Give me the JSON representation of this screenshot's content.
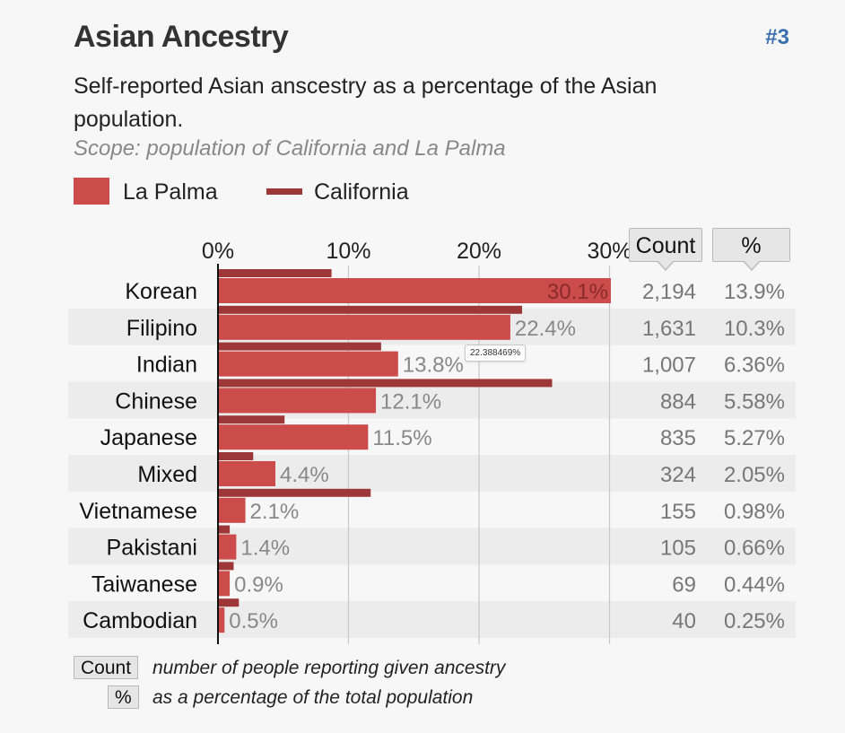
{
  "header": {
    "title": "Asian Ancestry",
    "rank": "#3",
    "subtitle": "Self-reported Asian anscestry as a percentage of the Asian population.",
    "scope": "Scope: population of California and La Palma"
  },
  "legend": {
    "la_palma": "La Palma",
    "california": "California"
  },
  "columns": {
    "count_label": "Count",
    "pct_label": "%"
  },
  "tooltip": "22.388469%",
  "footnotes": {
    "count_key": "Count",
    "count_desc": "number of people reporting given ancestry",
    "pct_key": "%",
    "pct_desc": "as a percentage of the total population"
  },
  "colors": {
    "la_palma": "#cc4b4b",
    "california": "#9e3838",
    "rank": "#3a6fb0"
  },
  "chart_data": {
    "type": "bar",
    "orientation": "horizontal",
    "title": "Asian Ancestry",
    "xlim": [
      0,
      30
    ],
    "x_ticks": [
      "0%",
      "10%",
      "20%",
      "30%"
    ],
    "categories": [
      "Korean",
      "Filipino",
      "Indian",
      "Chinese",
      "Japanese",
      "Mixed",
      "Vietnamese",
      "Pakistani",
      "Taiwanese",
      "Cambodian"
    ],
    "series": [
      {
        "name": "La Palma",
        "values": [
          30.1,
          22.4,
          13.8,
          12.1,
          11.5,
          4.4,
          2.1,
          1.4,
          0.9,
          0.5
        ],
        "labels": [
          "30.1%",
          "22.4%",
          "13.8%",
          "12.1%",
          "11.5%",
          "4.4%",
          "2.1%",
          "1.4%",
          "0.9%",
          "0.5%"
        ]
      },
      {
        "name": "California",
        "values": [
          8.7,
          23.3,
          12.5,
          25.6,
          5.1,
          2.7,
          11.7,
          0.9,
          1.2,
          1.6
        ]
      }
    ],
    "counts": [
      "2,194",
      "1,631",
      "1,007",
      "884",
      "835",
      "324",
      "155",
      "105",
      "69",
      "40"
    ],
    "percents": [
      "13.9%",
      "10.3%",
      "6.36%",
      "5.58%",
      "5.27%",
      "2.05%",
      "0.98%",
      "0.66%",
      "0.44%",
      "0.25%"
    ]
  }
}
